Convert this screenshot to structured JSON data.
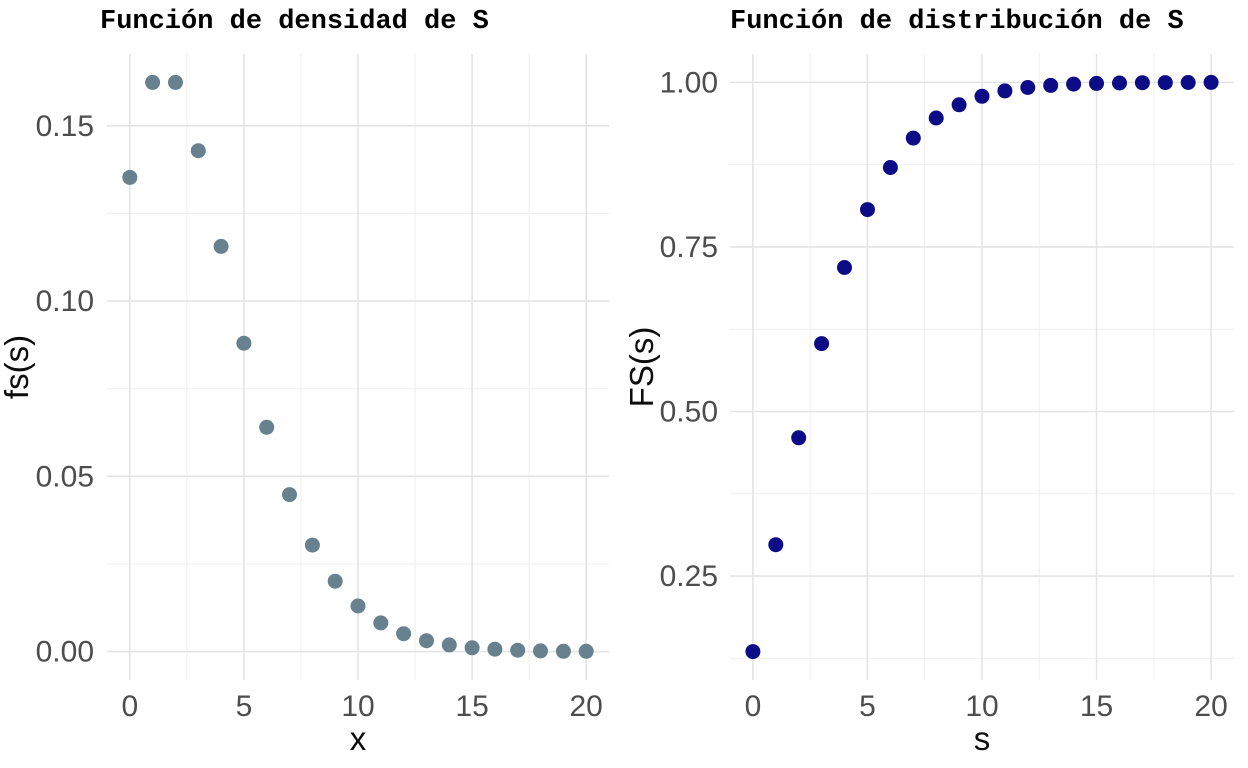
{
  "figure": {
    "background": "#ffffff",
    "grid_major_color": "#e4e4e4",
    "grid_minor_color": "#efefef",
    "tick_label_color": "#4d4d4d",
    "axis_title_color": "#0d0d0d",
    "title_color": "#000000"
  },
  "chart_data": [
    {
      "type": "scatter",
      "title": "Función de densidad de S",
      "xlabel": "x",
      "ylabel": "fs(s)",
      "point_color": "#68818F",
      "x": [
        0,
        1,
        2,
        3,
        4,
        5,
        6,
        7,
        8,
        9,
        10,
        11,
        12,
        13,
        14,
        15,
        16,
        17,
        18,
        19,
        20
      ],
      "y": [
        0.1353,
        0.1624,
        0.1624,
        0.1429,
        0.1156,
        0.088,
        0.064,
        0.0448,
        0.0304,
        0.0201,
        0.013,
        0.0082,
        0.0051,
        0.0031,
        0.0019,
        0.0011,
        0.0007,
        0.0004,
        0.0002,
        0.0001,
        0.0001
      ],
      "xticks": [
        0,
        5,
        10,
        15,
        20
      ],
      "xtick_labels": [
        "0",
        "5",
        "10",
        "15",
        "20"
      ],
      "yticks": [
        0.0,
        0.05,
        0.1,
        0.15
      ],
      "ytick_labels": [
        "0.00",
        "0.05",
        "0.10",
        "0.15"
      ],
      "xlim": [
        -1,
        21
      ],
      "ylim": [
        -0.0081,
        0.1705
      ],
      "grid": "major+minor",
      "legend": "none"
    },
    {
      "type": "scatter",
      "title": "Función de distribución de S",
      "xlabel": "s",
      "ylabel": "FS(s)",
      "point_color": "#0c0c87",
      "x": [
        0,
        1,
        2,
        3,
        4,
        5,
        6,
        7,
        8,
        9,
        10,
        11,
        12,
        13,
        14,
        15,
        16,
        17,
        18,
        19,
        20
      ],
      "y": [
        0.1353,
        0.2977,
        0.4601,
        0.6031,
        0.7187,
        0.8067,
        0.8707,
        0.9154,
        0.9458,
        0.9659,
        0.9789,
        0.9871,
        0.9922,
        0.9954,
        0.9973,
        0.9984,
        0.9991,
        0.9995,
        0.9997,
        0.9998,
        0.9999
      ],
      "xticks": [
        0,
        5,
        10,
        15,
        20
      ],
      "xtick_labels": [
        "0",
        "5",
        "10",
        "15",
        "20"
      ],
      "yticks": [
        0.25,
        0.5,
        0.75,
        1.0
      ],
      "ytick_labels": [
        "0.25",
        "0.50",
        "0.75",
        "1.00"
      ],
      "xlim": [
        -1,
        21
      ],
      "ylim": [
        0.0921,
        1.0431
      ],
      "grid": "major+minor",
      "legend": "none"
    }
  ]
}
